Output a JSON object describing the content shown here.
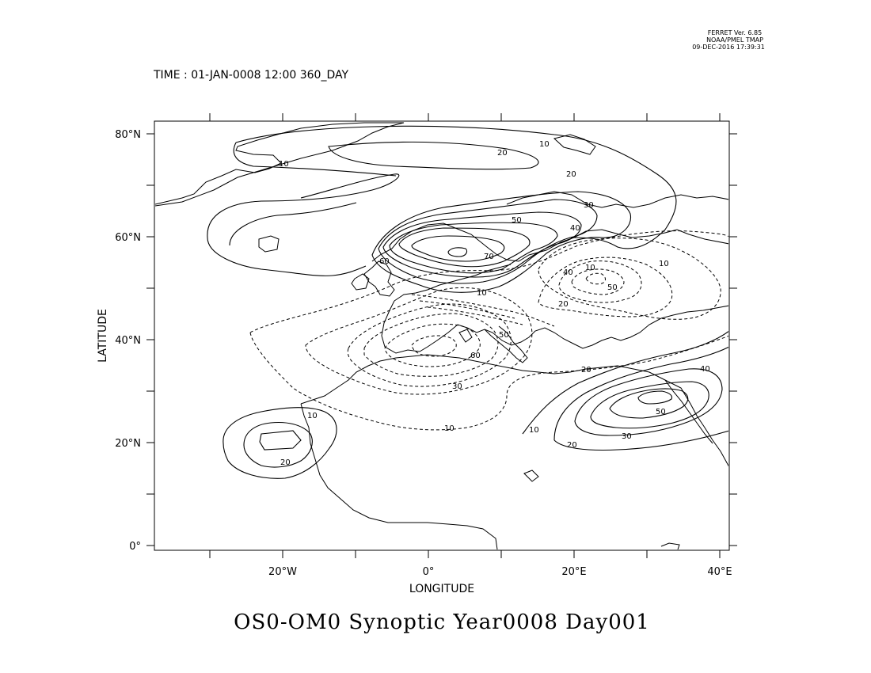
{
  "header": {
    "ferret_version": "FERRET Ver. 6.85",
    "ferret_org": "NOAA/PMEL TMAP",
    "ferret_date": "09-DEC-2016 17:39:31",
    "time_label": "TIME : 01-JAN-0008 12:00 360_DAY"
  },
  "plot": {
    "title": "OS0-OM0 Synoptic Year0008 Day001",
    "xlabel": "LONGITUDE",
    "ylabel": "LATITUDE",
    "x_ticks": [
      "20°W",
      "0°",
      "20°E",
      "40°E"
    ],
    "y_ticks": [
      "80°N",
      "60°N",
      "40°N",
      "20°N",
      "0°"
    ],
    "contour_labels": {
      "l10a": "10",
      "l20a": "20",
      "l10b": "10",
      "l20b": "20",
      "l30a": "30",
      "l40a": "40",
      "l50a": "50",
      "l10c": "10",
      "l70a": "70",
      "l60a": "60",
      "l10d": "10",
      "l40b": "40",
      "l50b": "50",
      "l10e": "10",
      "l20c": "20",
      "l50c": "50",
      "l60b": "60",
      "l30b": "30",
      "l10f": "10",
      "l20d": "20",
      "l40c": "40",
      "l50d": "50",
      "l30c": "30",
      "l20e": "20",
      "l10g": "10",
      "l10h": "10",
      "l20f": "20"
    }
  },
  "chart_data": {
    "type": "contour",
    "title": "OS0-OM0 Synoptic Year0008 Day001",
    "xlabel": "LONGITUDE",
    "ylabel": "LATITUDE",
    "xlim": [
      -37,
      41
    ],
    "ylim": [
      -1,
      83
    ],
    "contour_levels_positive": [
      10,
      20,
      30,
      40,
      50,
      60,
      70
    ],
    "contour_levels_negative": [
      10,
      20,
      30,
      40,
      50,
      60
    ],
    "negative_contours_style": "dashed",
    "features": [
      {
        "sign": "positive",
        "peak_value": 70,
        "lon": 4,
        "lat": 57
      },
      {
        "sign": "positive",
        "peak_value": 50,
        "lon": 31,
        "lat": 29
      },
      {
        "sign": "positive",
        "peak_value": 20,
        "lon": -21,
        "lat": 21
      },
      {
        "sign": "negative",
        "peak_value": 60,
        "lon": 2,
        "lat": 40
      },
      {
        "sign": "negative",
        "peak_value": 50,
        "lon": 23,
        "lat": 52
      }
    ]
  }
}
